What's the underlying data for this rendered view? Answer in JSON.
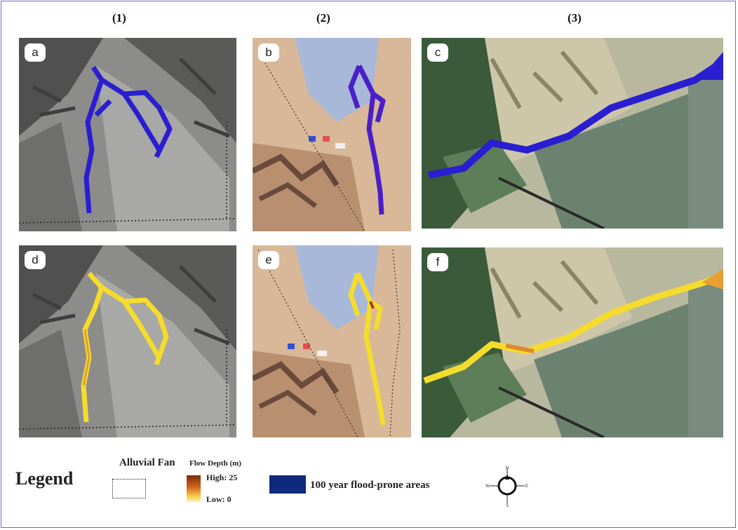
{
  "columns": [
    "(1)",
    "(2)",
    "(3)"
  ],
  "panels": [
    {
      "id": "a",
      "label": "a",
      "kind": "flood-prone"
    },
    {
      "id": "b",
      "label": "b",
      "kind": "flood-prone"
    },
    {
      "id": "c",
      "label": "c",
      "kind": "flood-prone"
    },
    {
      "id": "d",
      "label": "d",
      "kind": "flow-depth"
    },
    {
      "id": "e",
      "label": "e",
      "kind": "flow-depth"
    },
    {
      "id": "f",
      "label": "f",
      "kind": "flow-depth"
    }
  ],
  "legend": {
    "title": "Legend",
    "alluvial_fan": "Alluvial Fan",
    "flow_depth": "Flow Depth (m)",
    "high": "High: 25",
    "low": "Low: 0",
    "flood_prone": "100 year flood-prone areas"
  },
  "compass": {
    "n": "N",
    "s": "S",
    "e": "E",
    "w": "W"
  },
  "colors": {
    "flood": "#2a1fd0",
    "flood_swatch": "#0e2a7c",
    "depth_high": "#7a2a08",
    "depth_low": "#fbf3b0",
    "depth_main": "#f5dc2c"
  }
}
